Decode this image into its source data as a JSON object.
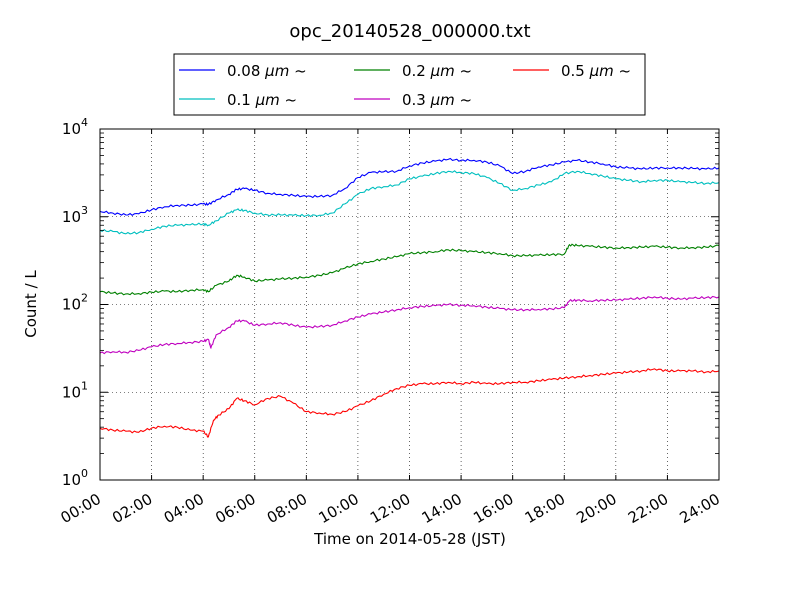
{
  "chart_data": {
    "type": "line",
    "title": "opc_20140528_000000.txt",
    "xlabel": "Time on 2014-05-28 (JST)",
    "ylabel": "Count / L",
    "yscale": "log",
    "ylim": [
      1,
      10000
    ],
    "xlim": [
      0,
      24
    ],
    "grid": true,
    "legend_placement": "top (above plot, 3 columns)",
    "x_tick_labels": [
      "00:00",
      "02:00",
      "04:00",
      "06:00",
      "08:00",
      "10:00",
      "12:00",
      "14:00",
      "16:00",
      "18:00",
      "20:00",
      "22:00",
      "24:00"
    ],
    "x_tick_values": [
      0,
      2,
      4,
      6,
      8,
      10,
      12,
      14,
      16,
      18,
      20,
      22,
      24
    ],
    "y_ticks": [
      {
        "value": 1,
        "base": "10",
        "exp": "0"
      },
      {
        "value": 10,
        "base": "10",
        "exp": "1"
      },
      {
        "value": 100,
        "base": "10",
        "exp": "2"
      },
      {
        "value": 1000,
        "base": "10",
        "exp": "3"
      },
      {
        "value": 10000,
        "base": "10",
        "exp": "4"
      }
    ],
    "x_unit": "hours since 00:00",
    "series": [
      {
        "name_value": "0.08",
        "name_unit": "μm ~",
        "color": "#0000ff",
        "points": [
          [
            0,
            1150
          ],
          [
            0.5,
            1100
          ],
          [
            1,
            1050
          ],
          [
            1.5,
            1080
          ],
          [
            2,
            1200
          ],
          [
            2.5,
            1300
          ],
          [
            3,
            1350
          ],
          [
            3.5,
            1350
          ],
          [
            4,
            1400
          ],
          [
            4.2,
            1380
          ],
          [
            4.5,
            1550
          ],
          [
            5,
            1800
          ],
          [
            5.3,
            2050
          ],
          [
            5.6,
            2100
          ],
          [
            6,
            2000
          ],
          [
            6.5,
            1850
          ],
          [
            7,
            1800
          ],
          [
            7.5,
            1750
          ],
          [
            8,
            1700
          ],
          [
            8.5,
            1700
          ],
          [
            9,
            1750
          ],
          [
            9.5,
            2100
          ],
          [
            10,
            2800
          ],
          [
            10.5,
            3200
          ],
          [
            11,
            3250
          ],
          [
            11.5,
            3300
          ],
          [
            12,
            3800
          ],
          [
            12.5,
            4100
          ],
          [
            13,
            4300
          ],
          [
            13.5,
            4500
          ],
          [
            14,
            4400
          ],
          [
            14.5,
            4400
          ],
          [
            15,
            4200
          ],
          [
            15.5,
            3800
          ],
          [
            16,
            3100
          ],
          [
            16.5,
            3300
          ],
          [
            17,
            3700
          ],
          [
            17.5,
            3900
          ],
          [
            18,
            4200
          ],
          [
            18.5,
            4400
          ],
          [
            19,
            4200
          ],
          [
            19.5,
            4000
          ],
          [
            20,
            3700
          ],
          [
            20.5,
            3600
          ],
          [
            21,
            3500
          ],
          [
            21.5,
            3600
          ],
          [
            22,
            3600
          ],
          [
            22.5,
            3600
          ],
          [
            23,
            3550
          ],
          [
            23.5,
            3500
          ],
          [
            24,
            3600
          ]
        ]
      },
      {
        "name_value": "0.1",
        "name_unit": "μm ~",
        "color": "#00bfbf",
        "points": [
          [
            0,
            700
          ],
          [
            0.5,
            680
          ],
          [
            1,
            640
          ],
          [
            1.5,
            660
          ],
          [
            2,
            720
          ],
          [
            2.5,
            780
          ],
          [
            3,
            800
          ],
          [
            3.5,
            810
          ],
          [
            4,
            830
          ],
          [
            4.2,
            800
          ],
          [
            4.5,
            900
          ],
          [
            5,
            1100
          ],
          [
            5.3,
            1200
          ],
          [
            5.6,
            1180
          ],
          [
            6,
            1100
          ],
          [
            6.5,
            1050
          ],
          [
            7,
            1050
          ],
          [
            7.5,
            1040
          ],
          [
            8,
            1030
          ],
          [
            8.5,
            1040
          ],
          [
            9,
            1100
          ],
          [
            9.5,
            1400
          ],
          [
            10,
            1800
          ],
          [
            10.5,
            2100
          ],
          [
            11,
            2200
          ],
          [
            11.5,
            2300
          ],
          [
            12,
            2700
          ],
          [
            12.5,
            2900
          ],
          [
            13,
            3100
          ],
          [
            13.5,
            3300
          ],
          [
            14,
            3200
          ],
          [
            14.5,
            3100
          ],
          [
            15,
            2800
          ],
          [
            15.5,
            2400
          ],
          [
            16,
            2000
          ],
          [
            16.5,
            2100
          ],
          [
            17,
            2300
          ],
          [
            17.5,
            2500
          ],
          [
            18,
            3100
          ],
          [
            18.5,
            3300
          ],
          [
            19,
            3100
          ],
          [
            19.5,
            2900
          ],
          [
            20,
            2700
          ],
          [
            20.5,
            2600
          ],
          [
            21,
            2500
          ],
          [
            21.5,
            2600
          ],
          [
            22,
            2600
          ],
          [
            22.5,
            2500
          ],
          [
            23,
            2450
          ],
          [
            23.5,
            2400
          ],
          [
            24,
            2450
          ]
        ]
      },
      {
        "name_value": "0.2",
        "name_unit": "μm ~",
        "color": "#008000",
        "points": [
          [
            0,
            140
          ],
          [
            0.5,
            135
          ],
          [
            1,
            132
          ],
          [
            1.5,
            133
          ],
          [
            2,
            138
          ],
          [
            2.5,
            142
          ],
          [
            3,
            140
          ],
          [
            3.5,
            145
          ],
          [
            4,
            148
          ],
          [
            4.2,
            140
          ],
          [
            4.5,
            165
          ],
          [
            5,
            185
          ],
          [
            5.3,
            215
          ],
          [
            5.6,
            205
          ],
          [
            6,
            185
          ],
          [
            6.5,
            190
          ],
          [
            7,
            195
          ],
          [
            7.5,
            200
          ],
          [
            8,
            205
          ],
          [
            8.5,
            215
          ],
          [
            9,
            230
          ],
          [
            9.5,
            260
          ],
          [
            10,
            290
          ],
          [
            10.5,
            310
          ],
          [
            11,
            330
          ],
          [
            11.5,
            350
          ],
          [
            12,
            380
          ],
          [
            12.5,
            390
          ],
          [
            13,
            400
          ],
          [
            13.5,
            420
          ],
          [
            14,
            410
          ],
          [
            14.5,
            400
          ],
          [
            15,
            390
          ],
          [
            15.5,
            380
          ],
          [
            16,
            360
          ],
          [
            16.5,
            360
          ],
          [
            17,
            365
          ],
          [
            17.5,
            370
          ],
          [
            18,
            375
          ],
          [
            18.2,
            480
          ],
          [
            18.5,
            470
          ],
          [
            19,
            460
          ],
          [
            19.5,
            450
          ],
          [
            20,
            440
          ],
          [
            20.5,
            445
          ],
          [
            21,
            450
          ],
          [
            21.5,
            460
          ],
          [
            22,
            450
          ],
          [
            22.5,
            440
          ],
          [
            23,
            445
          ],
          [
            23.5,
            450
          ],
          [
            24,
            470
          ]
        ]
      },
      {
        "name_value": "0.3",
        "name_unit": "μm ~",
        "color": "#bf00bf",
        "points": [
          [
            0,
            28
          ],
          [
            0.5,
            29
          ],
          [
            1,
            28.5
          ],
          [
            1.5,
            30
          ],
          [
            2,
            33
          ],
          [
            2.5,
            35
          ],
          [
            3,
            36
          ],
          [
            3.5,
            37
          ],
          [
            4,
            38
          ],
          [
            4.2,
            40
          ],
          [
            4.3,
            32
          ],
          [
            4.5,
            45
          ],
          [
            5,
            55
          ],
          [
            5.3,
            65
          ],
          [
            5.6,
            65
          ],
          [
            6,
            58
          ],
          [
            6.5,
            60
          ],
          [
            7,
            62
          ],
          [
            7.5,
            58
          ],
          [
            8,
            55
          ],
          [
            8.5,
            56
          ],
          [
            9,
            58
          ],
          [
            9.5,
            65
          ],
          [
            10,
            72
          ],
          [
            10.5,
            78
          ],
          [
            11,
            82
          ],
          [
            11.5,
            87
          ],
          [
            12,
            92
          ],
          [
            12.5,
            95
          ],
          [
            13,
            97
          ],
          [
            13.5,
            100
          ],
          [
            14,
            98
          ],
          [
            14.5,
            97
          ],
          [
            15,
            93
          ],
          [
            15.5,
            90
          ],
          [
            16,
            87
          ],
          [
            16.5,
            87
          ],
          [
            17,
            88
          ],
          [
            17.5,
            89
          ],
          [
            18,
            92
          ],
          [
            18.2,
            110
          ],
          [
            18.5,
            112
          ],
          [
            19,
            110
          ],
          [
            19.5,
            112
          ],
          [
            20,
            112
          ],
          [
            20.5,
            115
          ],
          [
            21,
            118
          ],
          [
            21.5,
            122
          ],
          [
            22,
            118
          ],
          [
            22.5,
            115
          ],
          [
            23,
            118
          ],
          [
            23.5,
            120
          ],
          [
            24,
            122
          ]
        ]
      },
      {
        "name_value": "0.5",
        "name_unit": "μm ~",
        "color": "#ff0000",
        "points": [
          [
            0,
            3.9
          ],
          [
            0.5,
            3.7
          ],
          [
            1,
            3.6
          ],
          [
            1.5,
            3.5
          ],
          [
            2,
            3.9
          ],
          [
            2.5,
            4.1
          ],
          [
            3,
            4.0
          ],
          [
            3.5,
            3.7
          ],
          [
            4,
            3.6
          ],
          [
            4.2,
            3.1
          ],
          [
            4.4,
            4.8
          ],
          [
            4.6,
            5.5
          ],
          [
            5,
            6.5
          ],
          [
            5.3,
            8.5
          ],
          [
            5.6,
            8.0
          ],
          [
            6,
            7.2
          ],
          [
            6.5,
            8.5
          ],
          [
            7,
            9.0
          ],
          [
            7.5,
            7.5
          ],
          [
            8,
            6.0
          ],
          [
            8.5,
            5.8
          ],
          [
            9,
            5.6
          ],
          [
            9.5,
            6.0
          ],
          [
            10,
            7.0
          ],
          [
            10.5,
            8.0
          ],
          [
            11,
            9.5
          ],
          [
            11.5,
            11
          ],
          [
            12,
            12
          ],
          [
            12.5,
            12.5
          ],
          [
            13,
            12.5
          ],
          [
            13.5,
            13
          ],
          [
            14,
            12.5
          ],
          [
            14.5,
            13
          ],
          [
            15,
            12.5
          ],
          [
            15.5,
            12.5
          ],
          [
            16,
            13
          ],
          [
            16.5,
            13
          ],
          [
            17,
            13.5
          ],
          [
            17.5,
            14
          ],
          [
            18,
            14.5
          ],
          [
            18.5,
            15
          ],
          [
            19,
            15.5
          ],
          [
            19.5,
            16
          ],
          [
            20,
            16.5
          ],
          [
            20.5,
            17
          ],
          [
            21,
            17.5
          ],
          [
            21.5,
            18.5
          ],
          [
            22,
            17.5
          ],
          [
            22.5,
            17.5
          ],
          [
            23,
            17.5
          ],
          [
            23.5,
            17
          ],
          [
            24,
            17.5
          ]
        ]
      }
    ]
  }
}
